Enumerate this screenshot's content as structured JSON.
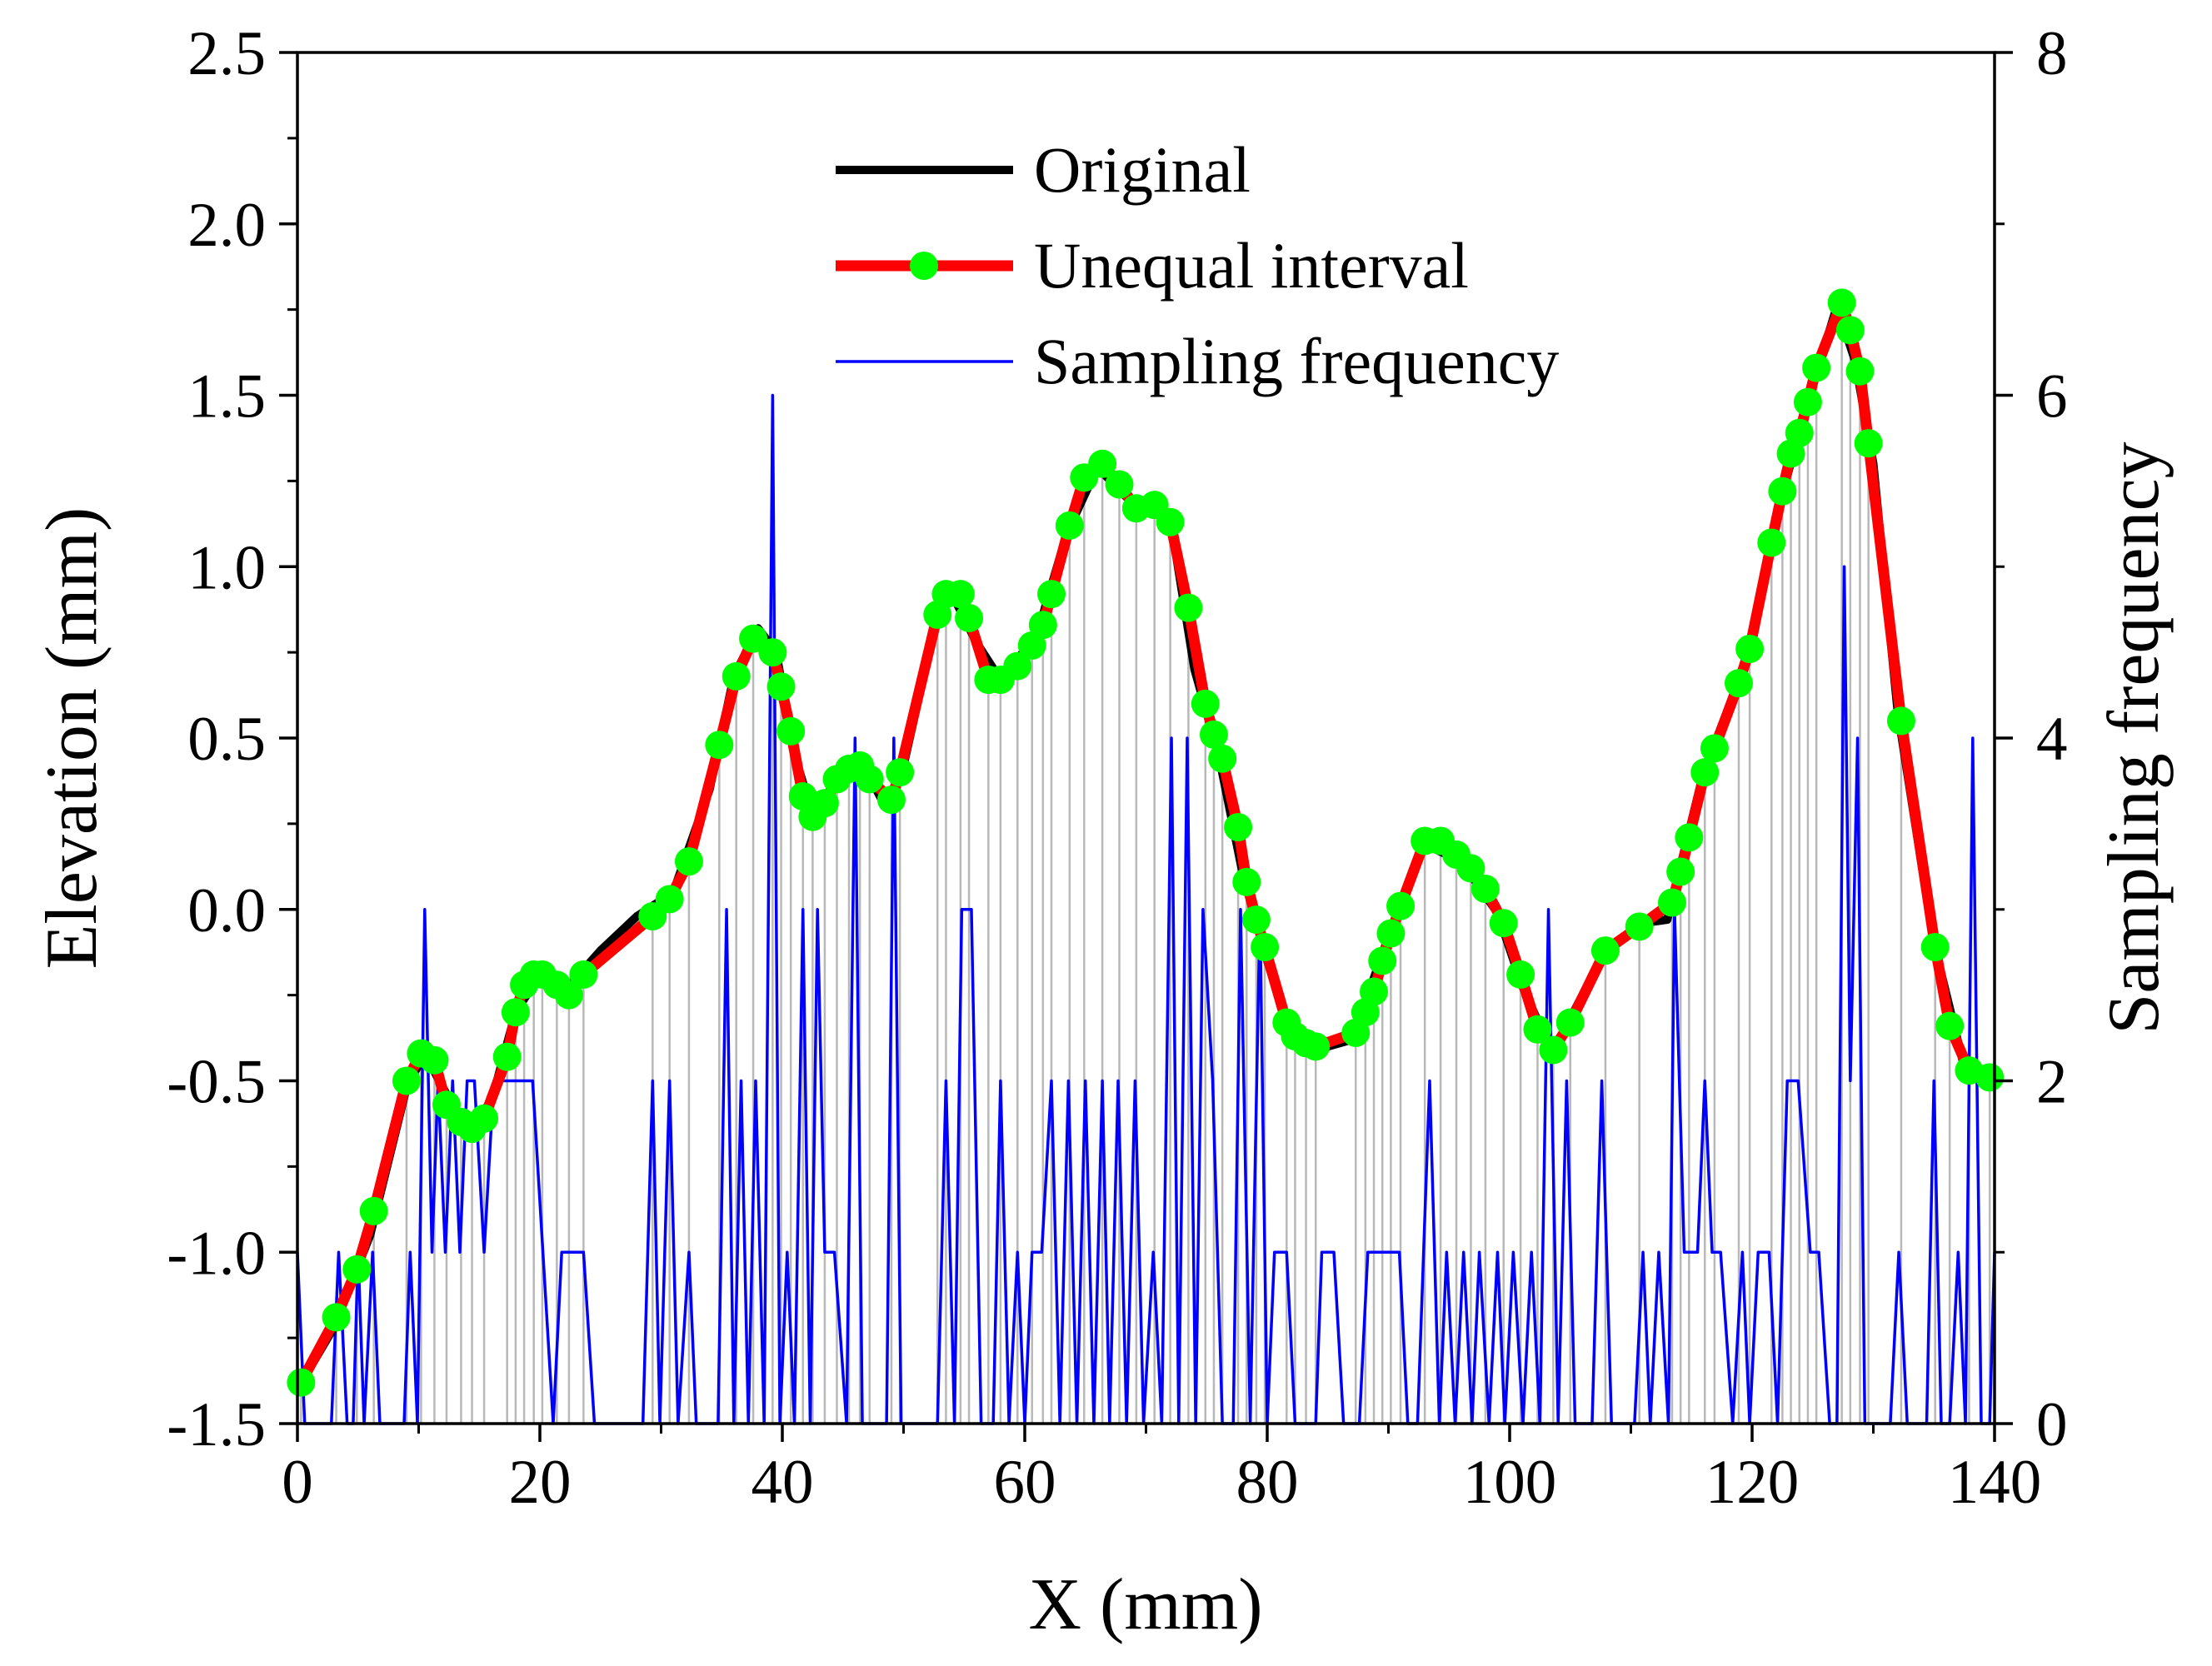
{
  "chart_data": {
    "type": "line",
    "xlabel": "X (mm)",
    "ylabel": "Elevation (mm)",
    "y2label": "Sampling frequency",
    "xlim": [
      0,
      140
    ],
    "xticks": [
      0,
      20,
      40,
      60,
      80,
      100,
      120,
      140
    ],
    "ylim": [
      -1.5,
      2.5
    ],
    "yticks": [
      -1.5,
      {
        "value": -1.0,
        "label": "-1.0"
      },
      -0.5,
      {
        "value": 0.0,
        "label": "0.0"
      },
      0.5,
      {
        "value": 1.0,
        "label": "1.0"
      },
      1.5,
      {
        "value": 2.0,
        "label": "2.0"
      },
      2.5
    ],
    "y2lim": [
      0,
      8
    ],
    "y2ticks": [
      0,
      2,
      4,
      6,
      8
    ],
    "legend": "upper center",
    "series": [
      {
        "name": "Original",
        "color": "#000000",
        "x": [
          0,
          3,
          6,
          9,
          10.5,
          12,
          14,
          16,
          18,
          20,
          22,
          25,
          28,
          31,
          34,
          36,
          38,
          39.5,
          41,
          42.5,
          45,
          47,
          48.5,
          50,
          52.8,
          54,
          56,
          58,
          61,
          63.5,
          66,
          69,
          72,
          74,
          76,
          78,
          80,
          82,
          84,
          87,
          90,
          93,
          96,
          99,
          101,
          103.5,
          106,
          108,
          111,
          113,
          116,
          119.5,
          122,
          124.5,
          127,
          128.5,
          130,
          132,
          135,
          137.5,
          140
        ],
        "values": [
          -1.4,
          -1.22,
          -0.95,
          -0.52,
          -0.42,
          -0.52,
          -0.64,
          -0.56,
          -0.3,
          -0.19,
          -0.24,
          -0.12,
          -0.02,
          0.05,
          0.35,
          0.68,
          0.82,
          0.75,
          0.45,
          0.28,
          0.4,
          0.4,
          0.3,
          0.42,
          0.86,
          0.92,
          0.78,
          0.67,
          0.8,
          1.1,
          1.29,
          1.18,
          1.14,
          0.7,
          0.45,
          0.1,
          -0.15,
          -0.36,
          -0.41,
          -0.38,
          -0.08,
          0.19,
          0.14,
          -0.01,
          -0.22,
          -0.42,
          -0.25,
          -0.12,
          -0.04,
          -0.03,
          0.4,
          0.72,
          1.15,
          1.47,
          1.76,
          1.6,
          1.3,
          0.58,
          -0.1,
          -0.46,
          -0.5
        ]
      },
      {
        "name": "Unequal interval",
        "color": "#ff0000",
        "marker_color": "#00ff00",
        "x": [
          0.3,
          3.2,
          4.9,
          6.3,
          9.0,
          10.2,
          11.3,
          12.3,
          13.5,
          14.4,
          15.4,
          17.3,
          18.0,
          18.7,
          19.5,
          20.2,
          21.4,
          22.4,
          23.6,
          29.3,
          30.7,
          32.3,
          34.8,
          36.2,
          37.6,
          39.2,
          39.9,
          40.7,
          41.7,
          42.5,
          43.5,
          44.5,
          45.5,
          46.4,
          47.2,
          49.0,
          49.7,
          52.8,
          53.5,
          54.7,
          55.4,
          57.0,
          58.0,
          59.4,
          60.6,
          61.5,
          62.2,
          63.7,
          64.9,
          66.4,
          67.8,
          69.2,
          70.7,
          72.0,
          73.5,
          74.9,
          75.6,
          76.3,
          77.6,
          78.3,
          79.1,
          79.8,
          81.6,
          82.3,
          83.2,
          84.0,
          87.3,
          88.1,
          88.8,
          89.5,
          90.2,
          91.0,
          93.0,
          94.3,
          95.6,
          96.8,
          98.0,
          99.5,
          100.9,
          102.3,
          103.6,
          105.0,
          107.9,
          110.7,
          113.4,
          114.1,
          114.8,
          116.1,
          116.9,
          118.9,
          119.8,
          121.6,
          122.5,
          123.2,
          123.9,
          124.6,
          125.3,
          127.4,
          128.1,
          128.9,
          129.6,
          132.3,
          135.1,
          136.3,
          137.9,
          139.6
        ],
        "values": [
          -1.38,
          -1.19,
          -1.05,
          -0.88,
          -0.5,
          -0.42,
          -0.44,
          -0.57,
          -0.62,
          -0.64,
          -0.61,
          -0.43,
          -0.3,
          -0.22,
          -0.19,
          -0.19,
          -0.22,
          -0.25,
          -0.19,
          -0.02,
          0.03,
          0.14,
          0.48,
          0.68,
          0.79,
          0.75,
          0.65,
          0.52,
          0.33,
          0.27,
          0.31,
          0.38,
          0.41,
          0.42,
          0.38,
          0.32,
          0.4,
          0.86,
          0.92,
          0.92,
          0.85,
          0.67,
          0.67,
          0.71,
          0.77,
          0.83,
          0.92,
          1.12,
          1.26,
          1.3,
          1.24,
          1.17,
          1.18,
          1.13,
          0.88,
          0.6,
          0.51,
          0.44,
          0.24,
          0.08,
          -0.03,
          -0.11,
          -0.33,
          -0.37,
          -0.39,
          -0.4,
          -0.36,
          -0.3,
          -0.24,
          -0.15,
          -0.07,
          0.01,
          0.2,
          0.2,
          0.16,
          0.12,
          0.06,
          -0.04,
          -0.19,
          -0.35,
          -0.41,
          -0.33,
          -0.12,
          -0.05,
          0.02,
          0.11,
          0.21,
          0.4,
          0.47,
          0.66,
          0.76,
          1.07,
          1.22,
          1.33,
          1.39,
          1.48,
          1.58,
          1.77,
          1.69,
          1.57,
          1.36,
          0.55,
          -0.11,
          -0.34,
          -0.47,
          -0.49
        ]
      },
      {
        "name": "Sampling frequency",
        "color": "#0000ff",
        "axis": "y2",
        "x": [
          0,
          0.6,
          2.8,
          3.4,
          4.1,
          4.6,
          5.0,
          5.5,
          6.2,
          6.8,
          8.8,
          9.3,
          9.9,
          10.5,
          11.1,
          11.6,
          12.2,
          12.8,
          13.4,
          14.0,
          14.6,
          15.4,
          16.2,
          17.0,
          19.4,
          21.1,
          21.8,
          23.6,
          24.5,
          28.5,
          29.3,
          29.9,
          30.7,
          31.4,
          32.3,
          32.9,
          34.7,
          35.4,
          36.0,
          36.6,
          37.2,
          37.8,
          38.5,
          39.2,
          39.8,
          40.4,
          41.0,
          41.7,
          42.3,
          42.9,
          43.5,
          44.3,
          45.3,
          46.0,
          46.6,
          48.6,
          49.2,
          49.8,
          52.8,
          53.5,
          54.2,
          54.8,
          55.6,
          56.4,
          57.4,
          58.0,
          58.7,
          59.4,
          60.0,
          60.6,
          61.4,
          62.2,
          62.9,
          63.6,
          64.3,
          65.0,
          65.7,
          66.4,
          67.0,
          67.7,
          68.4,
          69.1,
          69.8,
          70.6,
          71.3,
          72.1,
          72.7,
          73.4,
          74.1,
          74.7,
          75.5,
          76.3,
          77.2,
          77.8,
          78.6,
          79.4,
          80.0,
          80.6,
          81.6,
          82.3,
          84.0,
          84.5,
          85.5,
          86.3,
          87.6,
          88.3,
          90.9,
          91.6,
          92.4,
          93.4,
          94.2,
          94.8,
          95.5,
          96.2,
          96.9,
          97.5,
          98.3,
          99.0,
          99.6,
          100.3,
          101.1,
          101.8,
          102.5,
          103.2,
          104.0,
          104.7,
          105.4,
          106.8,
          107.6,
          108.4,
          110.3,
          111.0,
          111.6,
          112.3,
          113.1,
          113.6,
          114.4,
          115.5,
          116.1,
          116.7,
          117.4,
          118.4,
          119.2,
          119.8,
          120.5,
          121.4,
          122.1,
          122.9,
          123.8,
          124.8,
          125.5,
          126.4,
          127.0,
          127.6,
          128.1,
          128.7,
          129.3,
          131.4,
          132.1,
          132.8,
          134.4,
          135.0,
          135.6,
          136.3,
          137.0,
          137.6,
          138.2,
          138.9,
          139.6,
          140
        ],
        "values": [
          1,
          0,
          0,
          1,
          0,
          0,
          1,
          0,
          1,
          0,
          0,
          1,
          0,
          3,
          1,
          2,
          1,
          2,
          1,
          2,
          2,
          1,
          2,
          2,
          2,
          0,
          1,
          1,
          0,
          0,
          2,
          0,
          2,
          0,
          1,
          0,
          0,
          3,
          0,
          2,
          0,
          2,
          0,
          6,
          0,
          1,
          0,
          3,
          0,
          3,
          1,
          1,
          0,
          4,
          0,
          0,
          4,
          0,
          0,
          2,
          0,
          3,
          3,
          0,
          0,
          2,
          0,
          1,
          0,
          1,
          1,
          2,
          0,
          2,
          0,
          2,
          0,
          2,
          0,
          2,
          0,
          2,
          0,
          1,
          0,
          4,
          0,
          4,
          0,
          3,
          2,
          0,
          0,
          3,
          0,
          3,
          0,
          1,
          1,
          0,
          0,
          1,
          1,
          0,
          0,
          1,
          1,
          0,
          0,
          2,
          0,
          1,
          0,
          1,
          0,
          1,
          0,
          1,
          0,
          1,
          0,
          1,
          0,
          3,
          0,
          2,
          0,
          0,
          2,
          0,
          0,
          1,
          0,
          1,
          0,
          3,
          1,
          1,
          2,
          1,
          1,
          0,
          1,
          0,
          1,
          1,
          0,
          2,
          2,
          1,
          1,
          0,
          0,
          5,
          2,
          4,
          0,
          0,
          1,
          0,
          0,
          2,
          0,
          0,
          1,
          0,
          4,
          0,
          0,
          1
        ]
      }
    ]
  }
}
